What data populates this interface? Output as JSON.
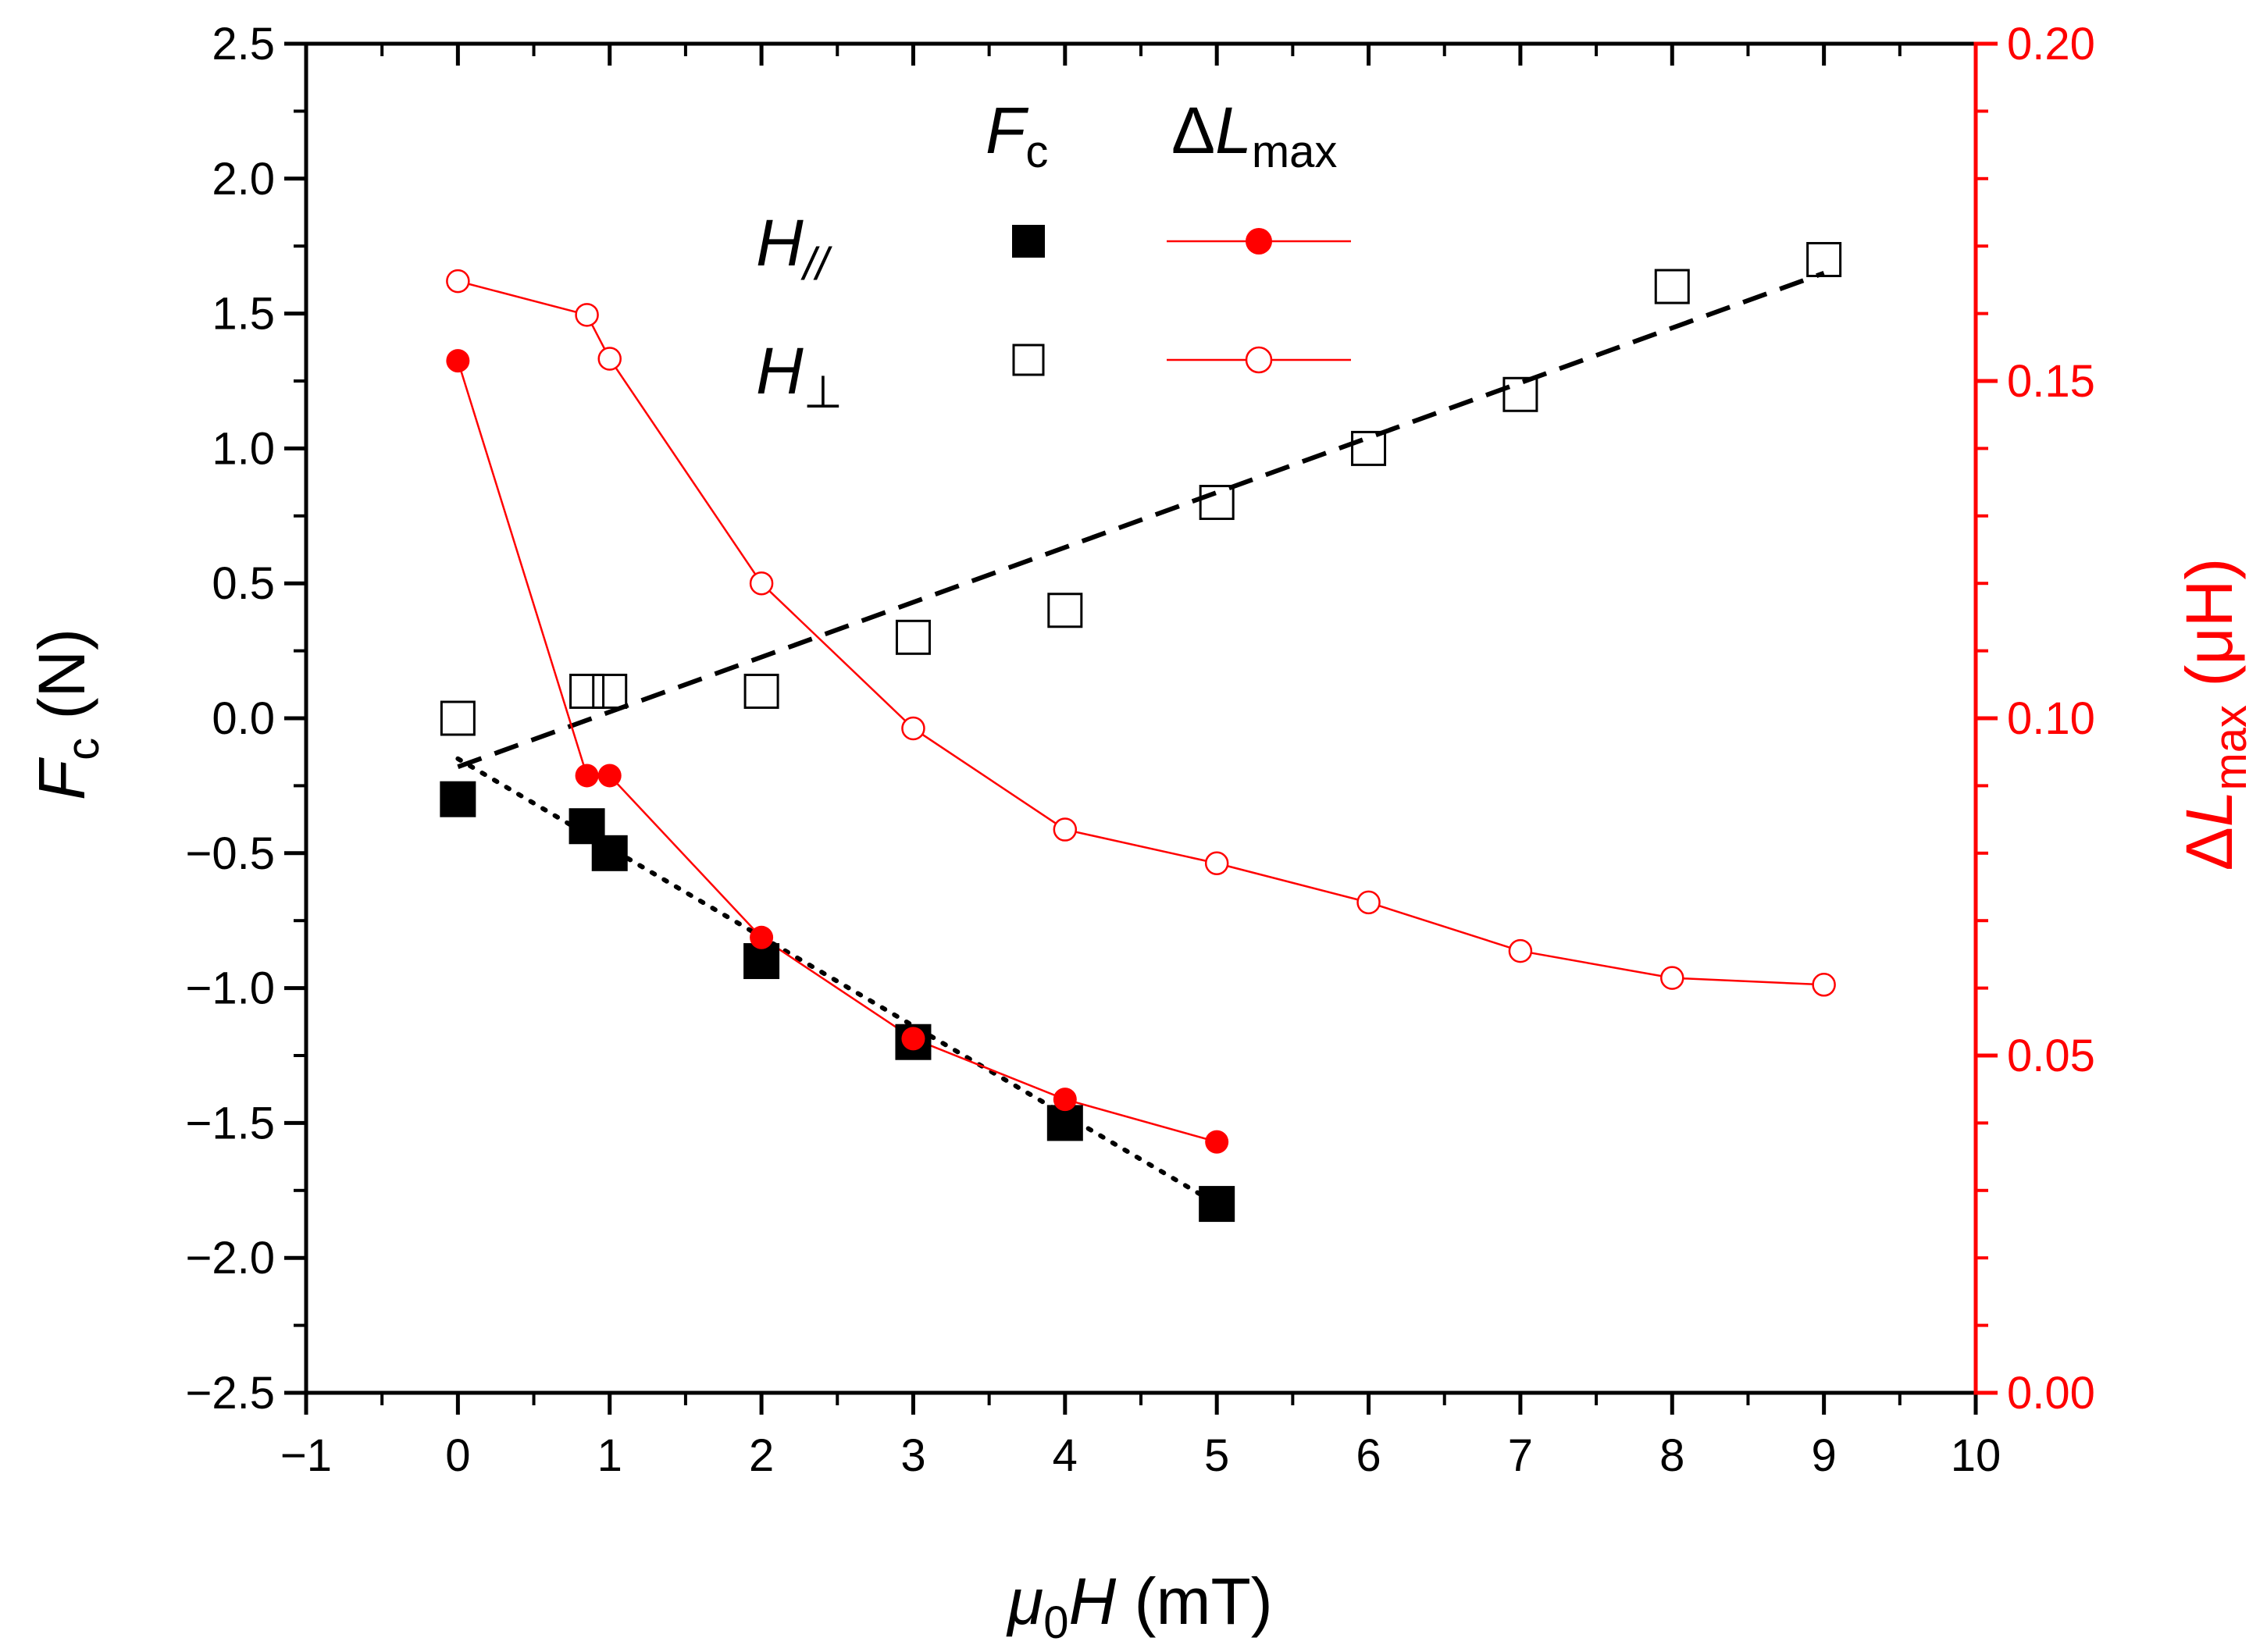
{
  "chart_data": {
    "type": "scatter",
    "xlabel": "(mT)",
    "xlabel_symbol": "μ",
    "xlabel_sub": "0",
    "xlabel_var": "H",
    "ylabel": "(N)",
    "ylabel_var": "F",
    "ylabel_sub": "c",
    "y2label": "(μH)",
    "y2label_prefix": "Δ",
    "y2label_var": "L",
    "y2label_sub": "max",
    "xlim": [
      -1,
      10
    ],
    "ylim": [
      -2.5,
      2.5
    ],
    "y2lim": [
      0.0,
      0.2
    ],
    "xticks": [
      "−1",
      "0",
      "1",
      "2",
      "3",
      "4",
      "5",
      "6",
      "7",
      "8",
      "9",
      "10"
    ],
    "yticks": [
      "−2.5",
      "−2.0",
      "−1.5",
      "−1.0",
      "−0.5",
      "0.0",
      "0.5",
      "1.0",
      "1.5",
      "2.0",
      "2.5"
    ],
    "y2ticks": [
      "0.00",
      "0.05",
      "0.10",
      "0.15",
      "0.20"
    ],
    "legend": {
      "col1_var": "F",
      "col1_sub": "c",
      "col2_prefix": "Δ",
      "col2_var": "L",
      "col2_sub": "max",
      "row1_var": "H",
      "row1_sub": "//",
      "row2_var": "H",
      "row2_sub": "⊥",
      "placement": "top-center"
    },
    "series": [
      {
        "name": "Fc H//",
        "axis": "left",
        "marker": "filled-square",
        "color": "#000000",
        "x": [
          0,
          0.85,
          1,
          2,
          3,
          4,
          5
        ],
        "y": [
          -0.3,
          -0.4,
          -0.5,
          -0.9,
          -1.2,
          -1.5,
          -1.8
        ]
      },
      {
        "name": "Fc H⊥",
        "axis": "left",
        "marker": "open-square",
        "color": "#000000",
        "x": [
          0,
          0.85,
          1,
          2,
          3,
          4,
          5,
          6,
          7,
          8,
          9
        ],
        "y": [
          0.0,
          0.1,
          0.1,
          0.1,
          0.3,
          0.4,
          0.8,
          1.0,
          1.2,
          1.6,
          1.7
        ]
      },
      {
        "name": "ΔLmax H//",
        "axis": "right",
        "marker": "filled-circle",
        "color": "#ff0000",
        "x": [
          0,
          0.85,
          1,
          2,
          3,
          4,
          5
        ],
        "y": [
          0.153,
          0.0915,
          0.0915,
          0.0675,
          0.0525,
          0.0435,
          0.0372
        ]
      },
      {
        "name": "ΔLmax H⊥",
        "axis": "right",
        "marker": "open-circle",
        "color": "#ff0000",
        "x": [
          0,
          0.85,
          1,
          2,
          3,
          4,
          5,
          6,
          7,
          8,
          9
        ],
        "y": [
          0.1648,
          0.1598,
          0.1533,
          0.12,
          0.0985,
          0.0835,
          0.0785,
          0.0727,
          0.0655,
          0.0615,
          0.0605
        ]
      }
    ],
    "fits": [
      {
        "name": "fit H//",
        "style": "dotted",
        "color": "#000000",
        "x": [
          0,
          5
        ],
        "y": [
          -0.15,
          -1.8
        ]
      },
      {
        "name": "fit H⊥",
        "style": "dashed",
        "color": "#000000",
        "x": [
          0,
          9
        ],
        "y": [
          -0.18,
          1.65
        ]
      }
    ]
  }
}
